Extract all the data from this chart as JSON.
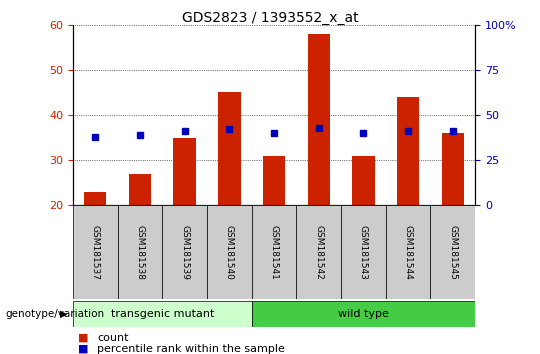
{
  "title": "GDS2823 / 1393552_x_at",
  "samples": [
    "GSM181537",
    "GSM181538",
    "GSM181539",
    "GSM181540",
    "GSM181541",
    "GSM181542",
    "GSM181543",
    "GSM181544",
    "GSM181545"
  ],
  "counts": [
    23,
    27,
    35,
    45,
    31,
    58,
    31,
    44,
    36
  ],
  "percentiles": [
    38,
    39,
    41,
    42,
    40,
    43,
    40,
    41,
    41
  ],
  "ylim_left": [
    20,
    60
  ],
  "ylim_right": [
    0,
    100
  ],
  "yticks_left": [
    20,
    30,
    40,
    50,
    60
  ],
  "yticks_right": [
    0,
    25,
    50,
    75,
    100
  ],
  "ytick_labels_right": [
    "0",
    "25",
    "50",
    "75",
    "100%"
  ],
  "bar_color": "#cc2200",
  "dot_color": "#0000bb",
  "bar_bottom": 20,
  "group_label": "genotype/variation",
  "legend_count_label": "count",
  "legend_percentile_label": "percentile rank within the sample",
  "title_fontsize": 10,
  "tick_label_color_left": "#cc2200",
  "tick_label_color_right": "#0000bb",
  "transgenic_color_light": "#ccffcc",
  "transgenic_color": "#aaddaa",
  "wildtype_color": "#44cc44",
  "sample_box_color": "#cccccc",
  "transgenic_n": 4,
  "wildtype_n": 5
}
